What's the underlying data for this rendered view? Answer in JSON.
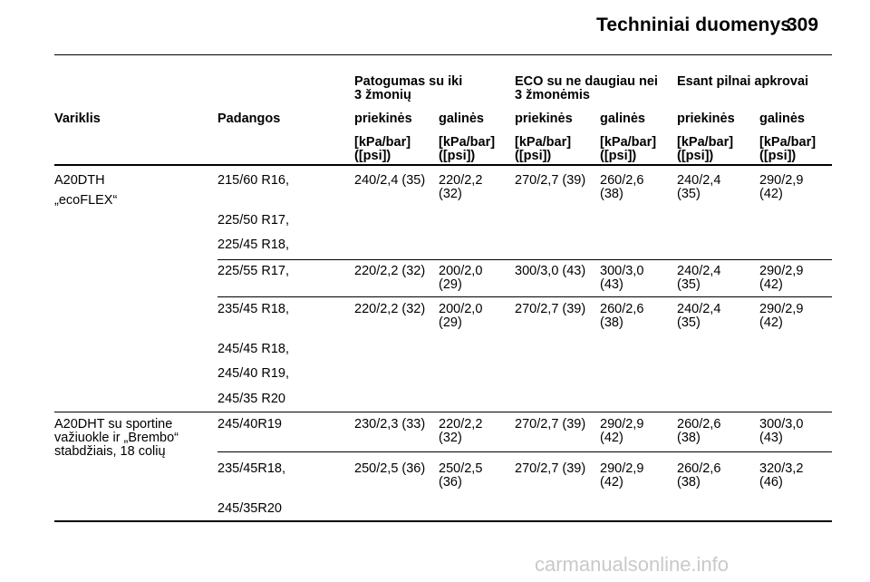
{
  "header": {
    "title": "Techniniai duomenys",
    "page_number": "309"
  },
  "table": {
    "groups": [
      {
        "line1": "Patogumas su iki",
        "line2": "3 žmonių"
      },
      {
        "line1": "ECO su ne daugiau nei",
        "line2": "3 žmonėmis"
      },
      {
        "line1": "Esant pilnai apkrovai",
        "line2": ""
      }
    ],
    "columns": [
      "Variklis",
      "Padangos",
      "priekinės",
      "galinės",
      "priekinės",
      "galinės",
      "priekinės",
      "galinės"
    ],
    "units": {
      "line1": "[kPa/bar]",
      "line2": "([psi])"
    },
    "engines": [
      {
        "line1": "A20DTH",
        "line2": "„ecoFLEX“",
        "line3": ""
      },
      {
        "line1": "A20DHT su sportine",
        "line2": "važiuokle ir „Brembo“",
        "line3": "stabdžiais, 18 colių"
      }
    ],
    "rows": [
      {
        "tires": [
          "215/60 R16,",
          "225/50 R17,",
          "225/45 R18,"
        ],
        "values": [
          [
            "240/2,4 (35)",
            ""
          ],
          [
            "220/2,2",
            "(32)"
          ],
          [
            "270/2,7 (39)",
            ""
          ],
          [
            "260/2,6",
            "(38)"
          ],
          [
            "240/2,4",
            "(35)"
          ],
          [
            "290/2,9",
            "(42)"
          ]
        ]
      },
      {
        "tires": [
          "225/55 R17,"
        ],
        "values": [
          [
            "220/2,2 (32)",
            ""
          ],
          [
            "200/2,0",
            "(29)"
          ],
          [
            "300/3,0 (43)",
            ""
          ],
          [
            "300/3,0",
            "(43)"
          ],
          [
            "240/2,4",
            "(35)"
          ],
          [
            "290/2,9",
            "(42)"
          ]
        ]
      },
      {
        "tires": [
          "235/45 R18,",
          "245/45 R18,",
          "245/40 R19,",
          "245/35 R20"
        ],
        "values": [
          [
            "220/2,2 (32)",
            ""
          ],
          [
            "200/2,0",
            "(29)"
          ],
          [
            "270/2,7 (39)",
            ""
          ],
          [
            "260/2,6",
            "(38)"
          ],
          [
            "240/2,4",
            "(35)"
          ],
          [
            "290/2,9",
            "(42)"
          ]
        ]
      },
      {
        "tires": [
          "245/40R19"
        ],
        "values": [
          [
            "230/2,3 (33)",
            ""
          ],
          [
            "220/2,2",
            "(32)"
          ],
          [
            "270/2,7 (39)",
            ""
          ],
          [
            "290/2,9",
            "(42)"
          ],
          [
            "260/2,6",
            "(38)"
          ],
          [
            "300/3,0",
            "(43)"
          ]
        ]
      },
      {
        "tires": [
          "235/45R18,",
          "245/35R20"
        ],
        "values": [
          [
            "250/2,5 (36)",
            ""
          ],
          [
            "250/2,5",
            "(36)"
          ],
          [
            "270/2,7 (39)",
            ""
          ],
          [
            "290/2,9",
            "(42)"
          ],
          [
            "260/2,6",
            "(38)"
          ],
          [
            "320/3,2",
            "(46)"
          ]
        ]
      }
    ]
  },
  "watermark": "carmanualsonline.info"
}
